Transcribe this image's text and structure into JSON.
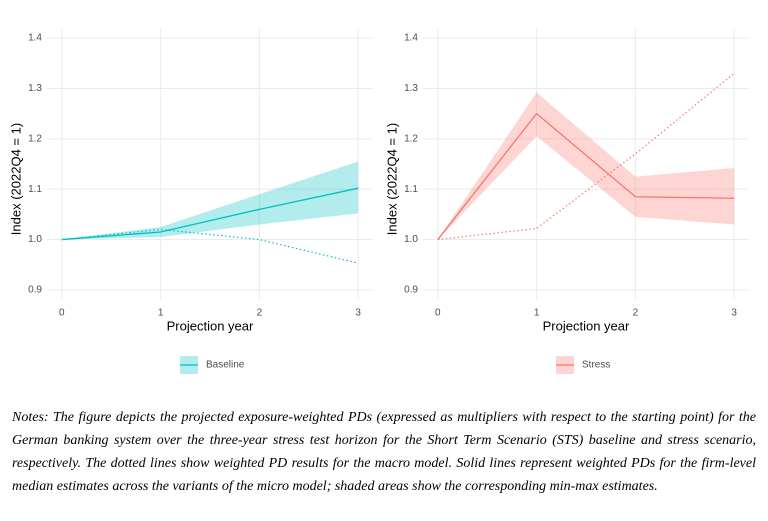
{
  "chart_data": [
    {
      "type": "line",
      "x": [
        0,
        1,
        2,
        3
      ],
      "xlim": [
        -0.15,
        3.15
      ],
      "xticks": [
        0,
        1,
        2,
        3
      ],
      "ylim": [
        0.88,
        1.42
      ],
      "yticks": [
        0.9,
        {
          "value": 1.0,
          "label": "1.0"
        },
        1.1,
        1.2,
        1.3,
        1.4
      ],
      "xlabel": "Projection year",
      "ylabel": "Index (2022Q4 = 1)",
      "grid": true,
      "series": [
        {
          "name": "Baseline",
          "color": "#00BFC4",
          "values": [
            1.0,
            1.015,
            1.06,
            1.102
          ],
          "lower": [
            1.0,
            1.005,
            1.03,
            1.052
          ],
          "upper": [
            1.0,
            1.025,
            1.09,
            1.155
          ]
        },
        {
          "color": "#00BFC4",
          "style": "dotted",
          "values": [
            1.0,
            1.02,
            1.0,
            0.953
          ]
        }
      ]
    },
    {
      "type": "line",
      "x": [
        0,
        1,
        2,
        3
      ],
      "xlim": [
        -0.15,
        3.15
      ],
      "xticks": [
        0,
        1,
        2,
        3
      ],
      "ylim": [
        0.88,
        1.42
      ],
      "yticks": [
        0.9,
        {
          "value": 1.0,
          "label": "1.0"
        },
        1.1,
        1.2,
        1.3,
        1.4
      ],
      "xlabel": "Projection year",
      "ylabel": "Index (2022Q4 = 1)",
      "grid": true,
      "series": [
        {
          "name": "Stress",
          "color": "#F8766D",
          "values": [
            1.0,
            1.25,
            1.085,
            1.082
          ],
          "lower": [
            1.0,
            1.205,
            1.045,
            1.03
          ],
          "upper": [
            1.0,
            1.292,
            1.125,
            1.142
          ]
        },
        {
          "color": "#F8766D",
          "style": "dotted",
          "values": [
            1.0,
            1.022,
            1.17,
            1.33
          ]
        }
      ]
    }
  ],
  "notes": "Notes: The figure depicts the projected exposure-weighted PDs (expressed as multipliers with respect to the starting point) for the German banking system over the three-year stress test horizon for the Short Term Scenario (STS) baseline and stress scenario, respectively. The dotted lines show weighted PD results for the macro model. Solid lines represent weighted PDs for the firm-level median estimates across the variants of the micro model; shaded areas show the corresponding min-max estimates."
}
